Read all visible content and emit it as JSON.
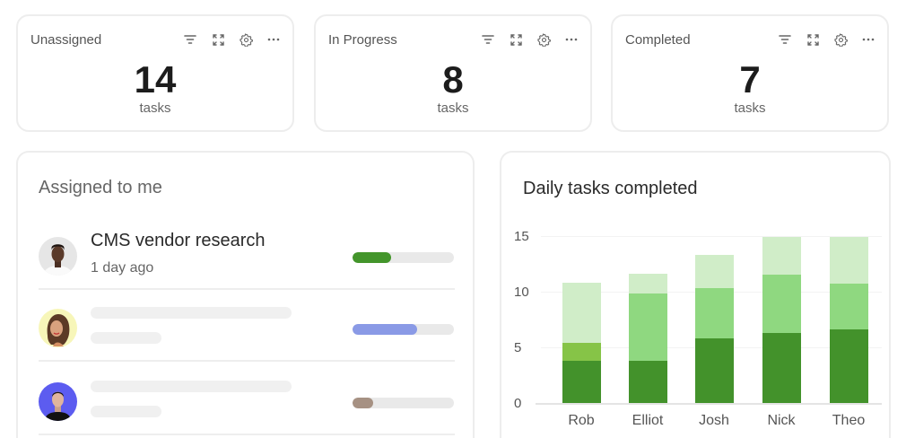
{
  "stats": [
    {
      "title": "Unassigned",
      "value": "14",
      "unit": "tasks"
    },
    {
      "title": "In Progress",
      "value": "8",
      "unit": "tasks"
    },
    {
      "title": "Completed",
      "value": "7",
      "unit": "tasks"
    }
  ],
  "stat_tools": [
    "filter-icon",
    "expand-icon",
    "settings-gear-icon",
    "more-options-icon"
  ],
  "assigned": {
    "heading": "Assigned to me",
    "items": [
      {
        "title": "CMS vendor research",
        "time": "1 day ago",
        "progress": 38,
        "color": "#43952b",
        "avatar_bg": "#e6e6e6",
        "loading": false
      },
      {
        "title": "",
        "time": "",
        "progress": 64,
        "color": "#8a9ae6",
        "avatar_bg": "#f7f6b9",
        "loading": true
      },
      {
        "title": "",
        "time": "",
        "progress": 20,
        "color": "#a69183",
        "avatar_bg": "#5c5cf0",
        "loading": true
      }
    ]
  },
  "chart": {
    "heading": "Daily tasks completed",
    "yticks": [
      "0",
      "5",
      "10",
      "15"
    ]
  },
  "chart_data": {
    "type": "bar",
    "stacked": true,
    "title": "Daily tasks completed",
    "categories": [
      "Rob",
      "Elliot",
      "Josh",
      "Nick",
      "Theo"
    ],
    "series": [
      {
        "name": "segment-1",
        "color": "#43922b",
        "values": [
          3.8,
          3.8,
          5.8,
          6.3,
          6.6
        ]
      },
      {
        "name": "segment-2",
        "color": "#8fd880",
        "values": [
          1.6,
          6.0,
          4.5,
          5.2,
          4.1
        ]
      },
      {
        "name": "segment-3",
        "color": "#d0edc8",
        "values": [
          5.4,
          1.8,
          3.0,
          3.4,
          4.2
        ]
      }
    ],
    "segment_colors_by_bar": [
      [
        "#43922b",
        "#86c447",
        "#d0edc8"
      ],
      [
        "#43922b",
        "#8fd880",
        "#d0edc8"
      ],
      [
        "#43922b",
        "#8fd880",
        "#d0edc8"
      ],
      [
        "#43922b",
        "#8fd880",
        "#d0edc8"
      ],
      [
        "#43922b",
        "#8fd880",
        "#d0edc8"
      ]
    ],
    "xlabel": "",
    "ylabel": "",
    "ylim": [
      0,
      15
    ],
    "yticks": [
      0,
      5,
      10,
      15
    ],
    "grid": true,
    "legend": null
  }
}
